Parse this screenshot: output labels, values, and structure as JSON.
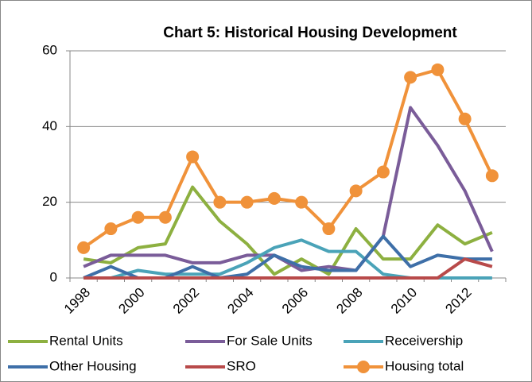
{
  "chart_data": {
    "type": "line",
    "title": "Chart 5: Historical Housing Development",
    "categories": [
      "1998",
      null,
      "2000",
      null,
      "2002",
      null,
      "2004",
      null,
      "2006",
      null,
      "2008",
      null,
      "2010",
      null,
      "2012",
      null
    ],
    "series": [
      {
        "name": "Rental Units",
        "color": "#8db040",
        "values": [
          5,
          4,
          8,
          9,
          24,
          15,
          9,
          1,
          5,
          1,
          13,
          5,
          5,
          14,
          9,
          12
        ]
      },
      {
        "name": "For Sale Units",
        "color": "#7a5c99",
        "values": [
          3,
          6,
          6,
          6,
          4,
          4,
          6,
          6,
          2,
          3,
          2,
          11,
          45,
          35,
          23,
          7
        ]
      },
      {
        "name": "Receivership",
        "color": "#4aa3b8",
        "values": [
          0,
          0,
          2,
          1,
          1,
          1,
          4,
          8,
          10,
          7,
          7,
          1,
          0,
          0,
          0,
          0
        ]
      },
      {
        "name": "Other  Housing",
        "color": "#3e6fa8",
        "values": [
          0,
          3,
          0,
          0,
          3,
          0,
          1,
          6,
          3,
          2,
          2,
          11,
          3,
          6,
          5,
          5
        ]
      },
      {
        "name": "SRO",
        "color": "#b84a4a",
        "values": [
          0,
          0,
          0,
          0,
          0,
          0,
          0,
          0,
          0,
          0,
          0,
          0,
          0,
          0,
          5,
          3
        ]
      },
      {
        "name": "Housing total",
        "color": "#f0923a",
        "marker": "circle",
        "values": [
          8,
          13,
          16,
          16,
          32,
          20,
          20,
          21,
          20,
          13,
          23,
          28,
          53,
          55,
          42,
          27
        ]
      }
    ],
    "ylim": [
      0,
      60
    ],
    "yticks": [
      0,
      20,
      40,
      60
    ],
    "grid": true
  }
}
